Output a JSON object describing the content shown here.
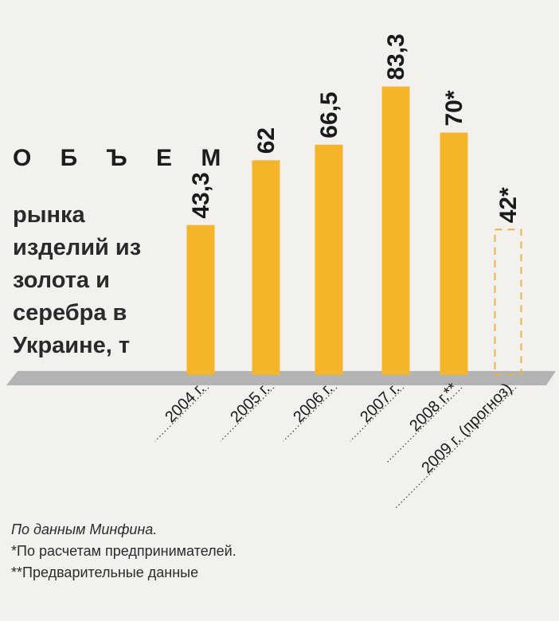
{
  "chart_data": {
    "type": "bar",
    "title": "О Б Ъ Е М",
    "subtitle": [
      "рынка",
      "изделий из",
      "золота и",
      "серебра в",
      "Украине, т"
    ],
    "categories": [
      "2004 г.",
      "2005 г.",
      "2006 г.",
      "2007 г.",
      "2008 г.**",
      "2009 г. (прогноз)"
    ],
    "values": [
      43.3,
      62,
      66.5,
      83.3,
      70,
      42
    ],
    "value_labels": [
      "43,3",
      "62",
      "66,5",
      "83,3",
      "70*",
      "42*"
    ],
    "forecast": [
      false,
      false,
      false,
      false,
      false,
      true
    ],
    "ylim": [
      0,
      100
    ],
    "grid": false,
    "colors": {
      "bar": "#f4b52a",
      "baseline": "#b3b3b3",
      "forecast_outline": "#e8b448",
      "text": "#1a1a1a"
    }
  },
  "notes": {
    "source": "По данным Минфина.",
    "note1": "*По расчетам предпринимателей.",
    "note2": "**Предварительные данные"
  }
}
